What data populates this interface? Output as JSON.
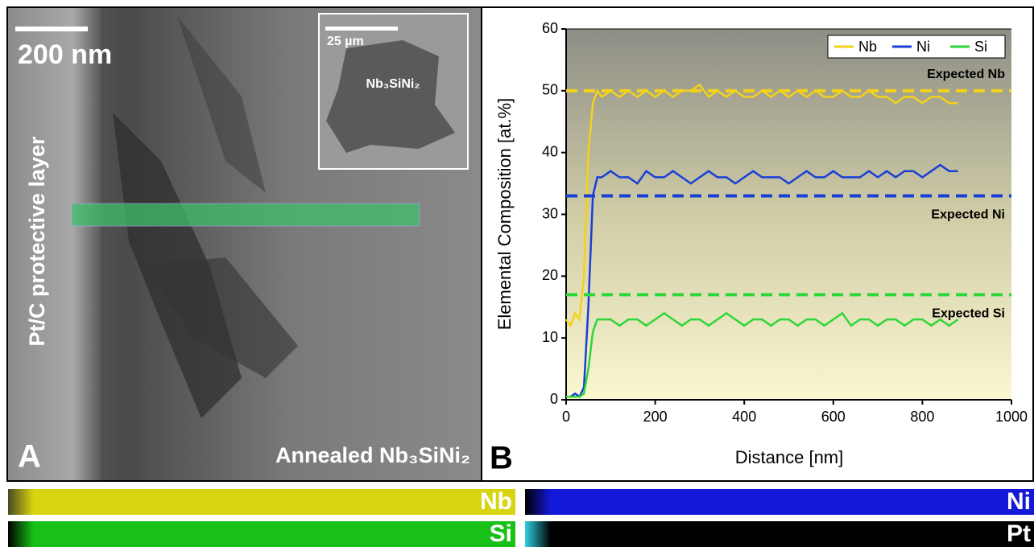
{
  "panel_a": {
    "panel_label": "A",
    "scale_bar": "200 nm",
    "inset_scale_bar": "25 µm",
    "inset_label": "Nb₃SiNi₂",
    "layer_label": "Pt/C protective layer",
    "sample_label": "Annealed Nb₃SiNi₂"
  },
  "chart_data": {
    "type": "line",
    "panel_label": "B",
    "x_label": "Distance [nm]",
    "y_label": "Elemental Composition [at.%]",
    "xlim": [
      0,
      1000
    ],
    "xticks": [
      0,
      200,
      400,
      600,
      800,
      1000
    ],
    "ylim": [
      0,
      60
    ],
    "yticks": [
      0,
      10,
      20,
      30,
      40,
      50,
      60
    ],
    "legend": "top-right",
    "x": [
      0,
      10,
      20,
      30,
      40,
      50,
      60,
      70,
      80,
      100,
      120,
      140,
      160,
      180,
      200,
      220,
      240,
      260,
      280,
      300,
      320,
      340,
      360,
      380,
      400,
      420,
      440,
      460,
      480,
      500,
      520,
      540,
      560,
      580,
      600,
      620,
      640,
      660,
      680,
      700,
      720,
      740,
      760,
      780,
      800,
      820,
      840,
      860,
      880
    ],
    "series": [
      {
        "name": "Nb",
        "color": "#f2d21b",
        "values": [
          13,
          12,
          14,
          13,
          20,
          40,
          48,
          50,
          49,
          50,
          49,
          50,
          49,
          50,
          49,
          50,
          49,
          50,
          50,
          51,
          49,
          50,
          49,
          50,
          49,
          49,
          50,
          49,
          50,
          49,
          50,
          49,
          50,
          49,
          49,
          50,
          49,
          49,
          50,
          49,
          49,
          48,
          49,
          49,
          48,
          49,
          49,
          48,
          48
        ]
      },
      {
        "name": "Ni",
        "color": "#1a3fd6",
        "values": [
          0.5,
          0.5,
          1,
          0.5,
          2,
          15,
          33,
          36,
          36,
          37,
          36,
          36,
          35,
          37,
          36,
          36,
          37,
          36,
          35,
          36,
          37,
          36,
          36,
          35,
          36,
          37,
          36,
          36,
          36,
          35,
          36,
          37,
          36,
          36,
          37,
          36,
          36,
          36,
          37,
          36,
          37,
          36,
          37,
          37,
          36,
          37,
          38,
          37,
          37
        ]
      },
      {
        "name": "Si",
        "color": "#2ed63a",
        "values": [
          0.5,
          0.5,
          0.5,
          0.5,
          1,
          5,
          11,
          13,
          13,
          13,
          12,
          13,
          13,
          12,
          13,
          14,
          13,
          12,
          13,
          13,
          12,
          13,
          14,
          13,
          12,
          13,
          13,
          12,
          13,
          13,
          12,
          13,
          13,
          12,
          13,
          14,
          12,
          13,
          13,
          12,
          13,
          13,
          12,
          13,
          13,
          12,
          13,
          12,
          13
        ]
      }
    ],
    "reference_lines": [
      {
        "value": 50,
        "label": "Expected Nb",
        "color": "#f2d21b"
      },
      {
        "value": 33,
        "label": "Expected Ni",
        "color": "#1a3fd6"
      },
      {
        "value": 17,
        "label": "Expected Si",
        "color": "#2ed63a"
      }
    ]
  },
  "maps": [
    {
      "label": "Nb"
    },
    {
      "label": "Ni"
    },
    {
      "label": "Si"
    },
    {
      "label": "Pt"
    }
  ]
}
